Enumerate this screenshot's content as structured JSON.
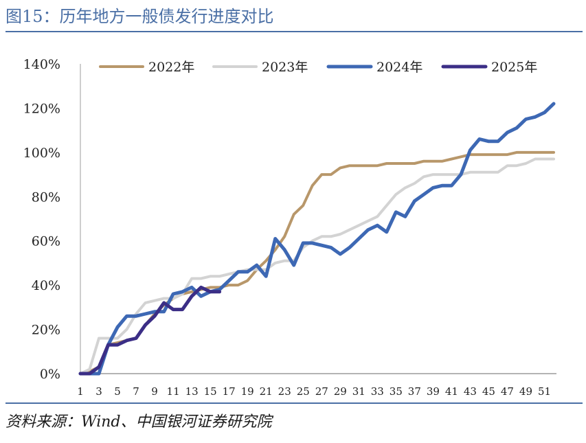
{
  "figure": {
    "title": "图15：历年地方一般债发行进度对比",
    "source": "资料来源：Wind、中国银河证券研究院"
  },
  "chart_data": {
    "type": "line",
    "title": "",
    "xlabel": "",
    "ylabel": "",
    "x_ticks": [
      1,
      3,
      5,
      7,
      9,
      11,
      13,
      15,
      17,
      19,
      21,
      23,
      25,
      27,
      29,
      31,
      33,
      35,
      37,
      39,
      41,
      43,
      45,
      47,
      49,
      51
    ],
    "y_ticks": [
      0,
      20,
      40,
      60,
      80,
      100,
      120,
      140
    ],
    "y_tick_labels": [
      "0%",
      "20%",
      "40%",
      "60%",
      "80%",
      "100%",
      "120%",
      "140%"
    ],
    "xlim": [
      1,
      52
    ],
    "ylim": [
      0,
      140
    ],
    "grid": false,
    "legend_position": "top",
    "series": [
      {
        "name": "2022年",
        "color": "#b8976a",
        "x": [
          1,
          2,
          3,
          4,
          5,
          6,
          7,
          8,
          9,
          10,
          11,
          12,
          13,
          14,
          15,
          16,
          17,
          18,
          19,
          20,
          21,
          22,
          23,
          24,
          25,
          26,
          27,
          28,
          29,
          30,
          31,
          32,
          33,
          34,
          35,
          36,
          37,
          38,
          39,
          40,
          41,
          42,
          43,
          44,
          45,
          46,
          47,
          48,
          49,
          50,
          51,
          52
        ],
        "values": [
          0,
          1,
          3,
          13,
          14,
          15,
          16,
          22,
          27,
          31,
          34,
          36,
          37,
          38,
          39,
          39,
          40,
          40,
          42,
          47,
          51,
          56,
          62,
          72,
          76,
          85,
          90,
          90,
          93,
          94,
          94,
          94,
          94,
          95,
          95,
          95,
          95,
          96,
          96,
          96,
          97,
          98,
          99,
          99,
          99,
          99,
          99,
          100,
          100,
          100,
          100,
          100
        ]
      },
      {
        "name": "2023年",
        "color": "#d3d3d3",
        "x": [
          1,
          2,
          3,
          4,
          5,
          6,
          7,
          8,
          9,
          10,
          11,
          12,
          13,
          14,
          15,
          16,
          17,
          18,
          19,
          20,
          21,
          22,
          23,
          24,
          25,
          26,
          27,
          28,
          29,
          30,
          31,
          32,
          33,
          34,
          35,
          36,
          37,
          38,
          39,
          40,
          41,
          42,
          43,
          44,
          45,
          46,
          47,
          48,
          49,
          50,
          51,
          52
        ],
        "values": [
          0,
          2,
          16,
          16,
          16,
          20,
          27,
          32,
          33,
          34,
          34,
          36,
          43,
          43,
          44,
          44,
          45,
          46,
          47,
          47,
          47,
          50,
          51,
          51,
          57,
          60,
          62,
          62,
          63,
          65,
          67,
          69,
          71,
          76,
          81,
          84,
          86,
          89,
          90,
          90,
          90,
          90,
          91,
          91,
          91,
          91,
          94,
          94,
          95,
          97,
          97,
          97
        ]
      },
      {
        "name": "2024年",
        "color": "#3d68b4",
        "x": [
          1,
          2,
          3,
          4,
          5,
          6,
          7,
          8,
          9,
          10,
          11,
          12,
          13,
          14,
          15,
          16,
          17,
          18,
          19,
          20,
          21,
          22,
          23,
          24,
          25,
          26,
          27,
          28,
          29,
          30,
          31,
          32,
          33,
          34,
          35,
          36,
          37,
          38,
          39,
          40,
          41,
          42,
          43,
          44,
          45,
          46,
          47,
          48,
          49,
          50,
          51,
          52
        ],
        "values": [
          0,
          0,
          0,
          13,
          21,
          26,
          26,
          27,
          28,
          28,
          36,
          37,
          39,
          35,
          37,
          38,
          42,
          46,
          46,
          49,
          44,
          61,
          56,
          49,
          59,
          59,
          58,
          57,
          54,
          57,
          61,
          65,
          67,
          64,
          73,
          71,
          78,
          81,
          84,
          85,
          85,
          90,
          101,
          106,
          105,
          105,
          109,
          111,
          115,
          116,
          118,
          122
        ]
      },
      {
        "name": "2025年",
        "color": "#3b2e86",
        "x": [
          1,
          2,
          3,
          4,
          5,
          6,
          7,
          8,
          9,
          10,
          11,
          12,
          13,
          14,
          15,
          16
        ],
        "values": [
          0,
          0,
          3,
          13,
          13,
          15,
          16,
          22,
          26,
          32,
          29,
          29,
          35,
          39,
          37,
          37
        ]
      }
    ]
  }
}
